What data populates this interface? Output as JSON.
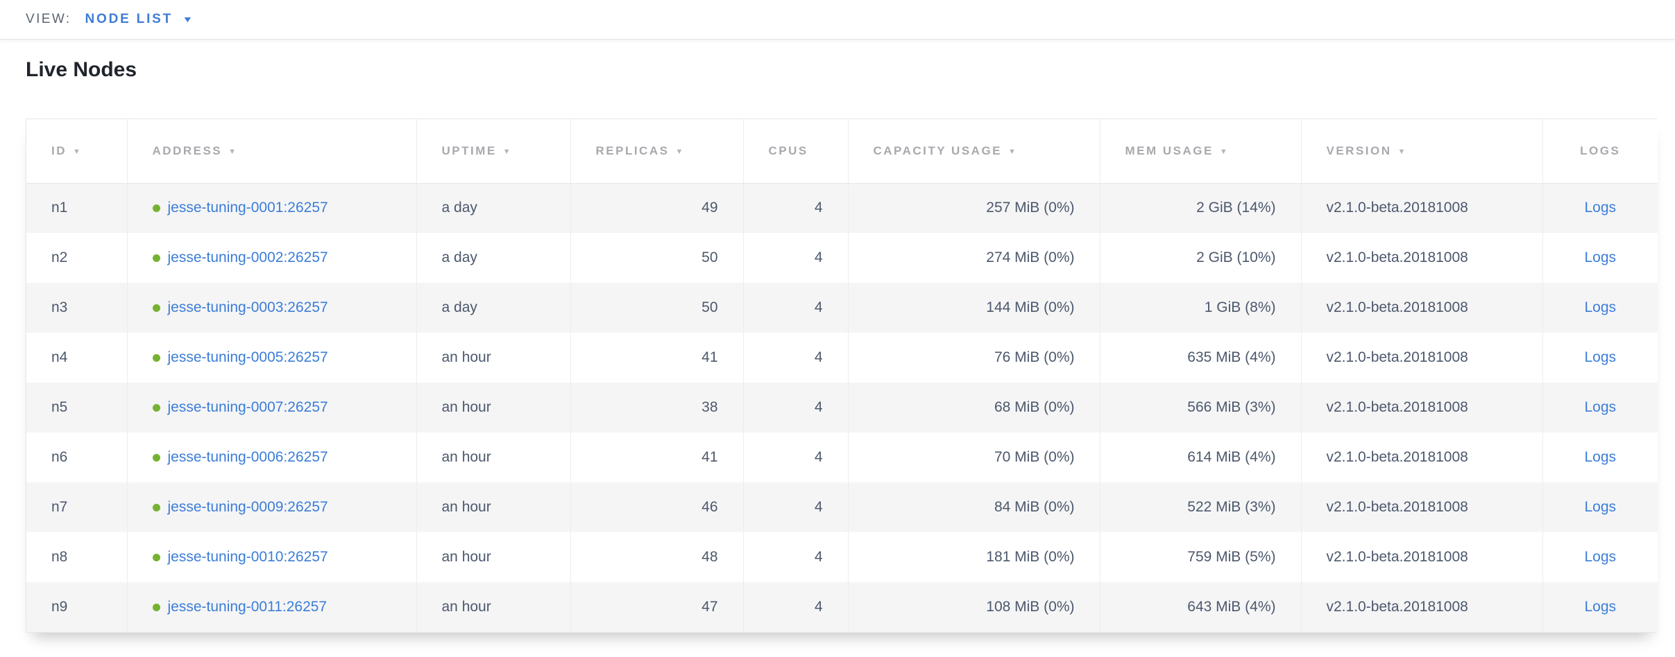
{
  "view_bar": {
    "label": "VIEW:",
    "selected_view": "NODE LIST"
  },
  "page": {
    "title": "Live Nodes"
  },
  "table": {
    "columns": [
      {
        "key": "id",
        "label": "ID",
        "sortable": true,
        "align": "left"
      },
      {
        "key": "address",
        "label": "ADDRESS",
        "sortable": true,
        "align": "left"
      },
      {
        "key": "uptime",
        "label": "UPTIME",
        "sortable": true,
        "align": "left"
      },
      {
        "key": "replicas",
        "label": "REPLICAS",
        "sortable": true,
        "align": "right"
      },
      {
        "key": "cpus",
        "label": "CPUS",
        "sortable": false,
        "align": "right"
      },
      {
        "key": "capacity_usage",
        "label": "CAPACITY USAGE",
        "sortable": true,
        "align": "right"
      },
      {
        "key": "mem_usage",
        "label": "MEM USAGE",
        "sortable": true,
        "align": "right"
      },
      {
        "key": "version",
        "label": "VERSION",
        "sortable": true,
        "align": "left"
      },
      {
        "key": "logs",
        "label": "LOGS",
        "sortable": false,
        "align": "center"
      }
    ],
    "rows": [
      {
        "id": "n1",
        "status": "live",
        "address": "jesse-tuning-0001:26257",
        "uptime": "a day",
        "replicas": "49",
        "cpus": "4",
        "capacity_usage": "257 MiB (0%)",
        "mem_usage": "2 GiB (14%)",
        "version": "v2.1.0-beta.20181008",
        "logs": "Logs"
      },
      {
        "id": "n2",
        "status": "live",
        "address": "jesse-tuning-0002:26257",
        "uptime": "a day",
        "replicas": "50",
        "cpus": "4",
        "capacity_usage": "274 MiB (0%)",
        "mem_usage": "2 GiB (10%)",
        "version": "v2.1.0-beta.20181008",
        "logs": "Logs"
      },
      {
        "id": "n3",
        "status": "live",
        "address": "jesse-tuning-0003:26257",
        "uptime": "a day",
        "replicas": "50",
        "cpus": "4",
        "capacity_usage": "144 MiB (0%)",
        "mem_usage": "1 GiB (8%)",
        "version": "v2.1.0-beta.20181008",
        "logs": "Logs"
      },
      {
        "id": "n4",
        "status": "live",
        "address": "jesse-tuning-0005:26257",
        "uptime": "an hour",
        "replicas": "41",
        "cpus": "4",
        "capacity_usage": "76 MiB (0%)",
        "mem_usage": "635 MiB (4%)",
        "version": "v2.1.0-beta.20181008",
        "logs": "Logs"
      },
      {
        "id": "n5",
        "status": "live",
        "address": "jesse-tuning-0007:26257",
        "uptime": "an hour",
        "replicas": "38",
        "cpus": "4",
        "capacity_usage": "68 MiB (0%)",
        "mem_usage": "566 MiB (3%)",
        "version": "v2.1.0-beta.20181008",
        "logs": "Logs"
      },
      {
        "id": "n6",
        "status": "live",
        "address": "jesse-tuning-0006:26257",
        "uptime": "an hour",
        "replicas": "41",
        "cpus": "4",
        "capacity_usage": "70 MiB (0%)",
        "mem_usage": "614 MiB (4%)",
        "version": "v2.1.0-beta.20181008",
        "logs": "Logs"
      },
      {
        "id": "n7",
        "status": "live",
        "address": "jesse-tuning-0009:26257",
        "uptime": "an hour",
        "replicas": "46",
        "cpus": "4",
        "capacity_usage": "84 MiB (0%)",
        "mem_usage": "522 MiB (3%)",
        "version": "v2.1.0-beta.20181008",
        "logs": "Logs"
      },
      {
        "id": "n8",
        "status": "live",
        "address": "jesse-tuning-0010:26257",
        "uptime": "an hour",
        "replicas": "48",
        "cpus": "4",
        "capacity_usage": "181 MiB (0%)",
        "mem_usage": "759 MiB (5%)",
        "version": "v2.1.0-beta.20181008",
        "logs": "Logs"
      },
      {
        "id": "n9",
        "status": "live",
        "address": "jesse-tuning-0011:26257",
        "uptime": "an hour",
        "replicas": "47",
        "cpus": "4",
        "capacity_usage": "108 MiB (0%)",
        "mem_usage": "643 MiB (4%)",
        "version": "v2.1.0-beta.20181008",
        "logs": "Logs"
      }
    ]
  },
  "icons": {
    "view_caret": "▼",
    "sort_caret": "▼"
  },
  "colors": {
    "accent_blue": "#3f7cd6",
    "link_blue": "#3b7dd8",
    "live_green": "#76b232",
    "header_gray": "#a8a9ad",
    "body_slate": "#4c586c"
  }
}
